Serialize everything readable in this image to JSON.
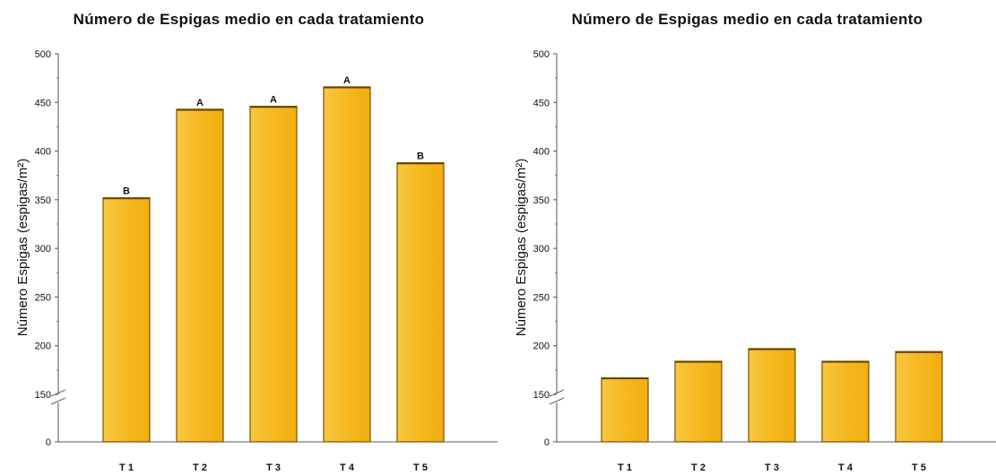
{
  "chart_data": [
    {
      "type": "bar",
      "title": "Número de Espigas medio en cada tratamiento",
      "ylabel": "Número Espigas (espigas/m²)",
      "xlabel": "",
      "categories": [
        "T 1",
        "T 2",
        "T 3",
        "T 4",
        "T 5"
      ],
      "values": [
        352,
        443,
        446,
        466,
        388
      ],
      "group_labels": [
        "B",
        "A",
        "A",
        "A",
        "B"
      ],
      "yticks": [
        "0",
        "150",
        "200",
        "250",
        "300",
        "350",
        "400",
        "450",
        "500"
      ],
      "axis_break": [
        0,
        130
      ],
      "ylim": [
        0,
        500
      ],
      "bar_color": "#F5B820",
      "bar_edge_color": "#7a5200",
      "grid": false
    },
    {
      "type": "bar",
      "title": "Número de Espigas medio en cada tratamiento",
      "ylabel": "Número Espigas (espigas/m²)",
      "xlabel": "",
      "categories": [
        "T 1",
        "T 2",
        "T 3",
        "T 4",
        "T 5"
      ],
      "values": [
        167,
        184,
        197,
        184,
        194
      ],
      "group_labels": [
        "",
        "",
        "",
        "",
        ""
      ],
      "yticks": [
        "0",
        "150",
        "200",
        "250",
        "300",
        "350",
        "400",
        "450",
        "500"
      ],
      "axis_break": [
        0,
        130
      ],
      "ylim": [
        0,
        500
      ],
      "bar_color": "#F5B820",
      "bar_edge_color": "#7a5200",
      "grid": false
    }
  ]
}
